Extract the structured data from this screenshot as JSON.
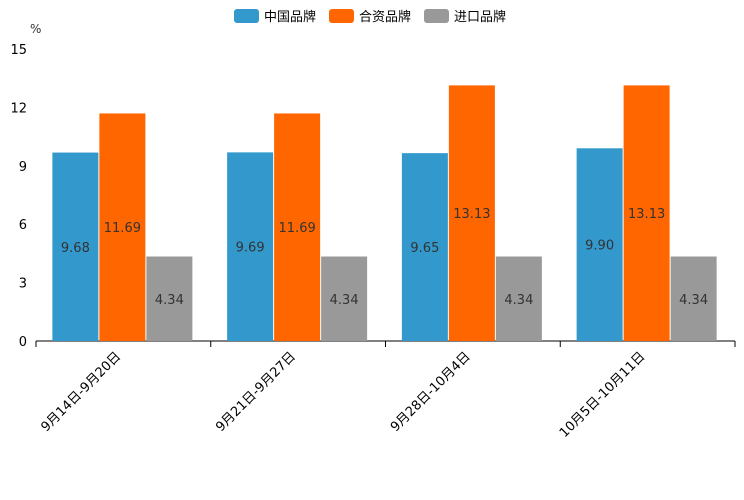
{
  "chart_data": {
    "type": "bar",
    "title": "",
    "xlabel": "",
    "ylabel": "%",
    "ylim": [
      0,
      15
    ],
    "yticks": [
      0,
      3,
      6,
      9,
      12,
      15
    ],
    "grid": false,
    "legend_position": "top-center",
    "categories": [
      "9月14日-9月20日",
      "9月21日-9月27日",
      "9月28日-10月4日",
      "10月5日-10月11日"
    ],
    "series": [
      {
        "name": "中国品牌",
        "color": "#3399cc",
        "values": [
          9.68,
          9.69,
          9.65,
          9.9
        ],
        "labels": [
          "9.68",
          "9.69",
          "9.65",
          "9.90"
        ]
      },
      {
        "name": "合资品牌",
        "color": "#ff6600",
        "values": [
          11.69,
          11.69,
          13.13,
          13.13
        ],
        "labels": [
          "11.69",
          "11.69",
          "13.13",
          "13.13"
        ]
      },
      {
        "name": "进口品牌",
        "color": "#999999",
        "values": [
          4.34,
          4.34,
          4.34,
          4.34
        ],
        "labels": [
          "4.34",
          "4.34",
          "4.34",
          "4.34"
        ]
      }
    ]
  }
}
